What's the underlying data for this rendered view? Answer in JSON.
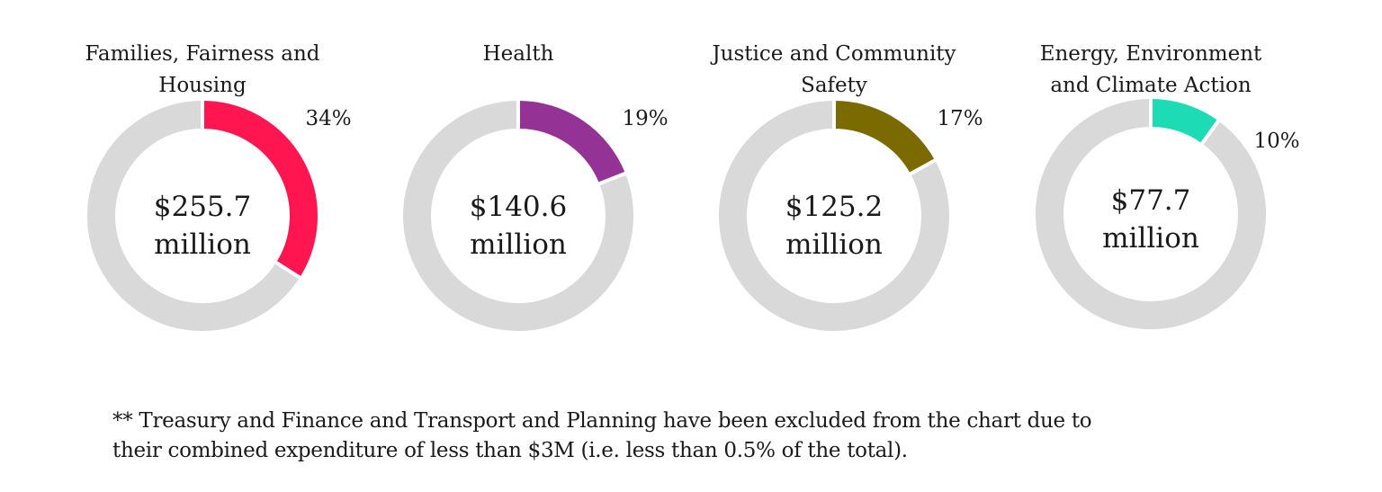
{
  "chart_data": [
    {
      "type": "pie",
      "title_lines": [
        "Families, Fairness and",
        "Housing"
      ],
      "center_lines": [
        "$255.7",
        "million"
      ],
      "categories": [
        "Families, Fairness and Housing",
        "Other"
      ],
      "values": [
        34,
        66
      ],
      "pct_label": "34%",
      "colors": [
        "#ff1650",
        "#d9d9d9"
      ]
    },
    {
      "type": "pie",
      "title_lines": [
        "Health"
      ],
      "center_lines": [
        "$140.6",
        "million"
      ],
      "categories": [
        "Health",
        "Other"
      ],
      "values": [
        19,
        81
      ],
      "pct_label": "19%",
      "colors": [
        "#943296",
        "#d9d9d9"
      ]
    },
    {
      "type": "pie",
      "title_lines": [
        "Justice and Community",
        "Safety"
      ],
      "center_lines": [
        "$125.2",
        "million"
      ],
      "categories": [
        "Justice and Community Safety",
        "Other"
      ],
      "values": [
        17,
        83
      ],
      "pct_label": "17%",
      "colors": [
        "#7b6a00",
        "#d9d9d9"
      ]
    },
    {
      "type": "pie",
      "title_lines": [
        "Energy, Environment",
        "and  Climate Action"
      ],
      "center_lines": [
        "$77.7",
        "million"
      ],
      "categories": [
        "Energy, Environment and Climate Action",
        "Other"
      ],
      "values": [
        10,
        90
      ],
      "pct_label": "10%",
      "colors": [
        "#1ddcb5",
        "#d9d9d9"
      ]
    }
  ],
  "footnote": {
    "line1": "** Treasury and Finance and Transport and Planning have been excluded from the chart due to",
    "line2": "their combined expenditure of less than $3M (i.e. less than 0.5% of the total)."
  }
}
